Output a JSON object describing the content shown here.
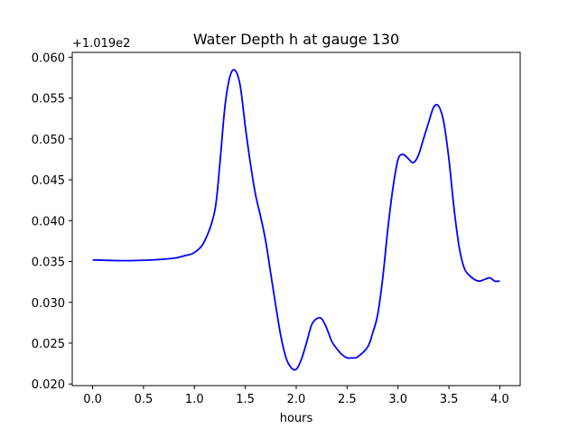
{
  "chart_data": {
    "type": "line",
    "title": "Water Depth h at gauge 130",
    "xlabel": "hours",
    "ylabel": "",
    "y_offset_label": "+1.019e2",
    "xlim": [
      -0.2,
      4.2
    ],
    "ylim": [
      0.0198,
      0.0606
    ],
    "x_ticks": [
      "0.0",
      "0.5",
      "1.0",
      "1.5",
      "2.0",
      "2.5",
      "3.0",
      "3.5",
      "4.0"
    ],
    "y_ticks": [
      "0.020",
      "0.025",
      "0.030",
      "0.035",
      "0.040",
      "0.045",
      "0.050",
      "0.055",
      "0.060"
    ],
    "grid": false,
    "legend": "none",
    "series": [
      {
        "color": "#0000ff",
        "x": [
          0.0,
          0.3,
          0.6,
          0.8,
          0.9,
          1.0,
          1.1,
          1.2,
          1.25,
          1.3,
          1.35,
          1.4,
          1.45,
          1.5,
          1.55,
          1.6,
          1.65,
          1.7,
          1.75,
          1.8,
          1.85,
          1.9,
          1.95,
          2.0,
          2.05,
          2.1,
          2.15,
          2.2,
          2.25,
          2.3,
          2.35,
          2.4,
          2.45,
          2.5,
          2.55,
          2.6,
          2.7,
          2.75,
          2.8,
          2.85,
          2.9,
          2.95,
          3.0,
          3.05,
          3.1,
          3.15,
          3.2,
          3.25,
          3.3,
          3.35,
          3.4,
          3.45,
          3.5,
          3.55,
          3.6,
          3.65,
          3.7,
          3.75,
          3.8,
          3.85,
          3.9,
          3.95,
          4.0
        ],
        "y": [
          0.0352,
          0.0351,
          0.0352,
          0.0354,
          0.0357,
          0.0361,
          0.0375,
          0.0412,
          0.047,
          0.054,
          0.0577,
          0.0584,
          0.0565,
          0.0515,
          0.047,
          0.0432,
          0.0405,
          0.0375,
          0.0335,
          0.0295,
          0.0258,
          0.0232,
          0.022,
          0.0218,
          0.023,
          0.025,
          0.0272,
          0.028,
          0.028,
          0.0268,
          0.0252,
          0.0243,
          0.0236,
          0.0232,
          0.0232,
          0.0233,
          0.0245,
          0.0262,
          0.0285,
          0.033,
          0.039,
          0.044,
          0.0475,
          0.0481,
          0.0476,
          0.0471,
          0.048,
          0.05,
          0.052,
          0.0539,
          0.054,
          0.052,
          0.0475,
          0.0415,
          0.0368,
          0.0342,
          0.0333,
          0.0328,
          0.0326,
          0.0328,
          0.033,
          0.0326,
          0.0326
        ]
      }
    ]
  }
}
